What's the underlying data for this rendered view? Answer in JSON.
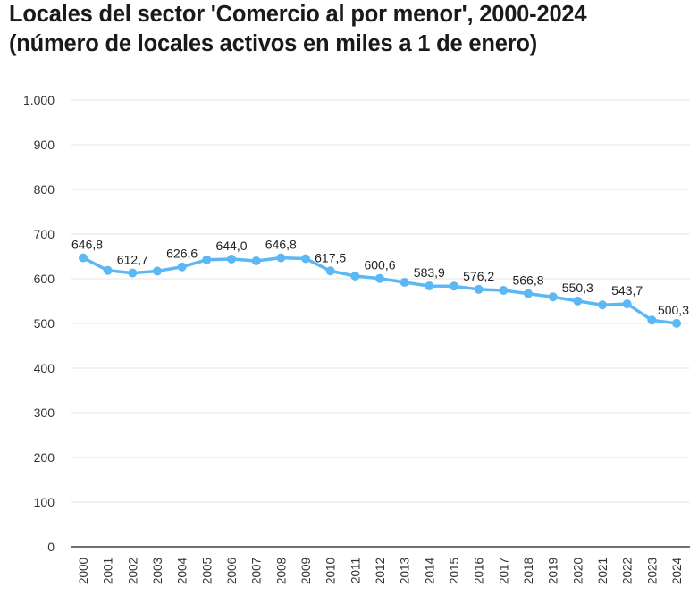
{
  "chart_data": {
    "type": "line",
    "title_line1": "Locales del sector 'Comercio al por menor', 2000-2024",
    "title_line2": "(número de locales activos en miles a 1 de enero)",
    "x": [
      "2000",
      "2001",
      "2002",
      "2003",
      "2004",
      "2005",
      "2006",
      "2007",
      "2008",
      "2009",
      "2010",
      "2011",
      "2012",
      "2013",
      "2014",
      "2015",
      "2016",
      "2017",
      "2018",
      "2019",
      "2020",
      "2021",
      "2022",
      "2023",
      "2024"
    ],
    "series": [
      {
        "values": [
          646.8,
          618.5,
          612.7,
          617.0,
          626.6,
          642.5,
          644.0,
          640.0,
          646.8,
          645.0,
          617.5,
          606.0,
          600.6,
          592.0,
          583.9,
          583.5,
          576.2,
          574.0,
          566.8,
          559.5,
          550.3,
          541.5,
          543.7,
          507.5,
          500.3
        ],
        "color": "#5bb8f5"
      }
    ],
    "data_labels": [
      {
        "index": 0,
        "text": "646,8"
      },
      {
        "index": 2,
        "text": "612,7"
      },
      {
        "index": 4,
        "text": "626,6"
      },
      {
        "index": 6,
        "text": "644,0"
      },
      {
        "index": 8,
        "text": "646,8"
      },
      {
        "index": 10,
        "text": "617,5"
      },
      {
        "index": 12,
        "text": "600,6"
      },
      {
        "index": 14,
        "text": "583,9"
      },
      {
        "index": 16,
        "text": "576,2"
      },
      {
        "index": 18,
        "text": "566,8"
      },
      {
        "index": 20,
        "text": "550,3"
      },
      {
        "index": 22,
        "text": "543,7"
      },
      {
        "index": 24,
        "text": "500,3"
      }
    ],
    "ylim": [
      0,
      1000
    ],
    "y_ticks": [
      0,
      100,
      200,
      300,
      400,
      500,
      600,
      700,
      800,
      900,
      1000
    ],
    "y_tick_labels": [
      "0",
      "100",
      "200",
      "300",
      "400",
      "500",
      "600",
      "700",
      "800",
      "900",
      "1.000"
    ],
    "grid": true,
    "legend": "none",
    "colors": {
      "line": "#5bb8f5",
      "grid": "#e6e6e6",
      "axis": "#444444",
      "text": "#333333"
    }
  }
}
